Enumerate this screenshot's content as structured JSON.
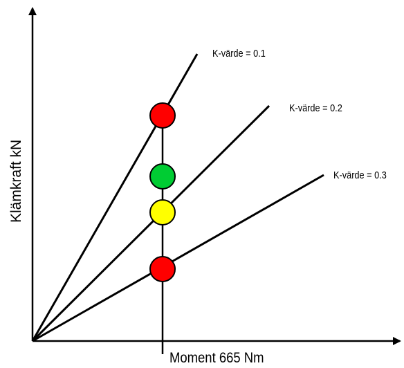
{
  "diagram": {
    "y_axis_label": "Klämkraft kN",
    "x_axis_label": "Moment 665 Nm",
    "lines": [
      {
        "label": "K-värde = 0.1"
      },
      {
        "label": "K-värde = 0.2"
      },
      {
        "label": "K-värde = 0.3"
      }
    ],
    "markers": [
      {
        "line": "K-värde = 0.1",
        "color": "#ff0000"
      },
      {
        "line": "between",
        "color": "#00cc33"
      },
      {
        "line": "K-värde = 0.2",
        "color": "#ffff00"
      },
      {
        "line": "K-värde = 0.3",
        "color": "#ff0000"
      }
    ],
    "colors": {
      "stroke": "#000000",
      "background": "#ffffff"
    }
  }
}
